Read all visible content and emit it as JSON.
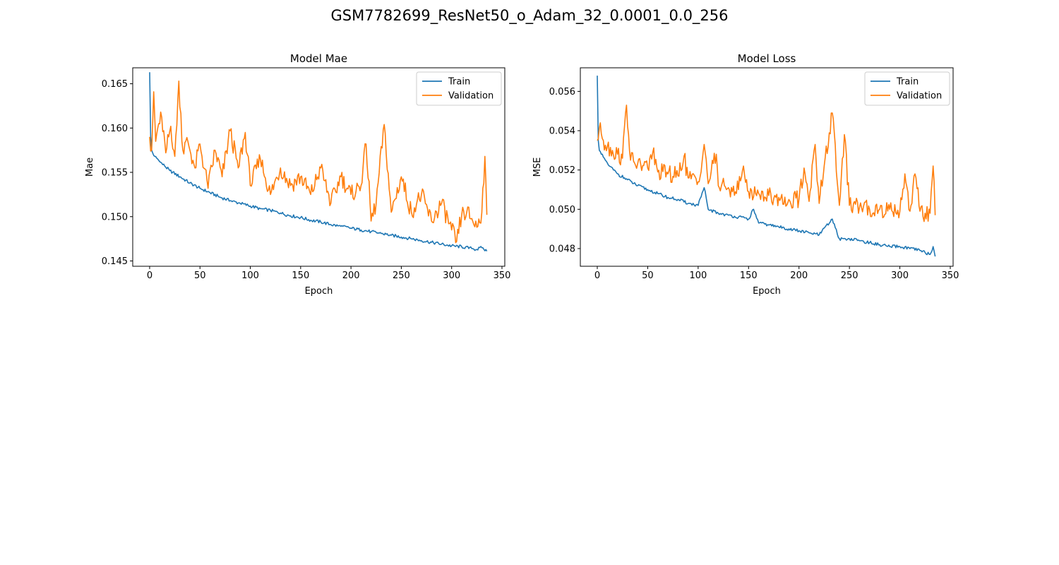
{
  "figure": {
    "title": "GSM7782699_ResNet50_o_Adam_32_0.0001_0.0_256"
  },
  "colors": {
    "train": "#1f77b4",
    "validation": "#ff7f0e",
    "axis": "#000000",
    "legend_border": "#cccccc"
  },
  "chart_data": [
    {
      "type": "line",
      "title": "Model Mae",
      "xlabel": "Epoch",
      "ylabel": "Mae",
      "xlim": [
        -16.8,
        352.8
      ],
      "ylim": [
        0.1444,
        0.1668
      ],
      "xticks": [
        0,
        50,
        100,
        150,
        200,
        250,
        300,
        350
      ],
      "xtick_labels": [
        "0",
        "50",
        "100",
        "150",
        "200",
        "250",
        "300",
        "350"
      ],
      "yticks": [
        0.145,
        0.15,
        0.155,
        0.16,
        0.165
      ],
      "ytick_labels": [
        "0.145",
        "0.150",
        "0.155",
        "0.160",
        "0.165"
      ],
      "grid": false,
      "legend": "top-right",
      "legend_labels": [
        "Train",
        "Validation"
      ],
      "series": [
        {
          "name": "Train",
          "color": "#1f77b4",
          "x": [
            0,
            1,
            2,
            3,
            5,
            8,
            10,
            15,
            20,
            30,
            40,
            50,
            60,
            70,
            80,
            90,
            100,
            110,
            120,
            130,
            140,
            150,
            160,
            170,
            180,
            190,
            200,
            210,
            220,
            230,
            240,
            250,
            260,
            270,
            280,
            290,
            300,
            310,
            320,
            325,
            330,
            335
          ],
          "y": [
            0.1663,
            0.159,
            0.1575,
            0.1572,
            0.1568,
            0.1565,
            0.1562,
            0.1557,
            0.1552,
            0.1545,
            0.1538,
            0.1532,
            0.1527,
            0.1522,
            0.1518,
            0.1515,
            0.1512,
            0.1509,
            0.1507,
            0.1504,
            0.1501,
            0.1499,
            0.1496,
            0.1494,
            0.1491,
            0.1489,
            0.1487,
            0.1485,
            0.1483,
            0.1481,
            0.1479,
            0.1477,
            0.1475,
            0.1473,
            0.1471,
            0.1469,
            0.1467,
            0.1466,
            0.1464,
            0.1463,
            0.1465,
            0.1461
          ]
        },
        {
          "name": "Validation",
          "color": "#ff7f0e",
          "x": [
            0,
            2,
            4,
            6,
            9,
            12,
            16,
            21,
            25,
            29,
            33,
            38,
            45,
            50,
            58,
            65,
            72,
            80,
            88,
            95,
            100,
            110,
            120,
            130,
            140,
            150,
            160,
            170,
            180,
            190,
            200,
            210,
            215,
            220,
            225,
            233,
            240,
            250,
            260,
            270,
            280,
            290,
            300,
            305,
            310,
            315,
            320,
            325,
            330,
            333,
            335
          ],
          "y": [
            0.159,
            0.1575,
            0.1641,
            0.1585,
            0.1605,
            0.1612,
            0.1572,
            0.1602,
            0.1568,
            0.1653,
            0.1575,
            0.1585,
            0.1555,
            0.1582,
            0.1532,
            0.1575,
            0.1545,
            0.1597,
            0.1555,
            0.1595,
            0.1535,
            0.1565,
            0.1525,
            0.1555,
            0.1535,
            0.1545,
            0.1525,
            0.1555,
            0.1515,
            0.1545,
            0.1525,
            0.1535,
            0.1582,
            0.1495,
            0.1515,
            0.1604,
            0.1505,
            0.1545,
            0.1505,
            0.1525,
            0.1495,
            0.1515,
            0.1485,
            0.1472,
            0.1502,
            0.1505,
            0.1498,
            0.1488,
            0.1505,
            0.1568,
            0.1502
          ]
        }
      ]
    },
    {
      "type": "line",
      "title": "Model Loss",
      "xlabel": "Epoch",
      "ylabel": "MSE",
      "xlim": [
        -16.8,
        352.8
      ],
      "ylim": [
        0.0471,
        0.0572
      ],
      "xticks": [
        0,
        50,
        100,
        150,
        200,
        250,
        300,
        350
      ],
      "xtick_labels": [
        "0",
        "50",
        "100",
        "150",
        "200",
        "250",
        "300",
        "350"
      ],
      "yticks": [
        0.048,
        0.05,
        0.052,
        0.054,
        0.056
      ],
      "ytick_labels": [
        "0.048",
        "0.050",
        "0.052",
        "0.054",
        "0.056"
      ],
      "grid": false,
      "legend": "top-right",
      "legend_labels": [
        "Train",
        "Validation"
      ],
      "series": [
        {
          "name": "Train",
          "color": "#1f77b4",
          "x": [
            0,
            1,
            2,
            4,
            8,
            12,
            16,
            20,
            30,
            40,
            50,
            60,
            70,
            80,
            90,
            100,
            106,
            110,
            120,
            130,
            140,
            150,
            155,
            160,
            170,
            180,
            190,
            200,
            210,
            220,
            233,
            240,
            250,
            260,
            270,
            280,
            290,
            300,
            310,
            320,
            325,
            330,
            333,
            335
          ],
          "y": [
            0.0568,
            0.0535,
            0.053,
            0.0528,
            0.0525,
            0.0522,
            0.052,
            0.0518,
            0.0515,
            0.0512,
            0.051,
            0.0508,
            0.0506,
            0.0505,
            0.0503,
            0.0502,
            0.0511,
            0.05,
            0.0498,
            0.0497,
            0.0496,
            0.0495,
            0.05,
            0.0493,
            0.0492,
            0.0491,
            0.049,
            0.0489,
            0.0488,
            0.0487,
            0.0495,
            0.0485,
            0.0485,
            0.0484,
            0.0483,
            0.0482,
            0.0481,
            0.0481,
            0.048,
            0.0479,
            0.0478,
            0.0477,
            0.0481,
            0.0476
          ]
        },
        {
          "name": "Validation",
          "color": "#ff7f0e",
          "x": [
            0,
            3,
            6,
            10,
            15,
            20,
            25,
            29,
            33,
            40,
            50,
            55,
            60,
            70,
            80,
            86,
            90,
            100,
            106,
            110,
            118,
            120,
            130,
            140,
            145,
            150,
            160,
            170,
            180,
            190,
            200,
            205,
            210,
            215,
            216,
            220,
            225,
            233,
            240,
            245,
            250,
            260,
            270,
            280,
            290,
            300,
            305,
            310,
            315,
            320,
            325,
            330,
            333,
            335
          ],
          "y": [
            0.0535,
            0.0544,
            0.0535,
            0.0532,
            0.053,
            0.0528,
            0.0526,
            0.0553,
            0.0525,
            0.0523,
            0.0521,
            0.0529,
            0.0519,
            0.0518,
            0.0517,
            0.0527,
            0.0516,
            0.0514,
            0.0533,
            0.0513,
            0.0528,
            0.0512,
            0.0511,
            0.051,
            0.0522,
            0.0509,
            0.0508,
            0.0507,
            0.0506,
            0.0505,
            0.0505,
            0.0521,
            0.0504,
            0.053,
            0.0533,
            0.0503,
            0.0522,
            0.0549,
            0.0502,
            0.0538,
            0.0502,
            0.0501,
            0.05,
            0.05,
            0.05,
            0.0499,
            0.0518,
            0.0499,
            0.0518,
            0.0499,
            0.0498,
            0.0498,
            0.0522,
            0.0497
          ]
        }
      ]
    }
  ]
}
